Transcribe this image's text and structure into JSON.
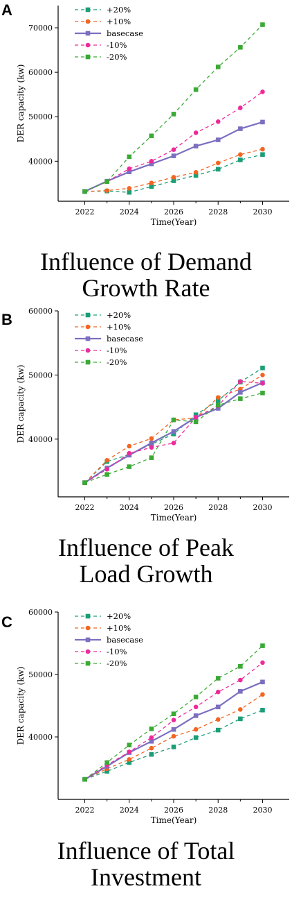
{
  "chart_data": [
    {
      "panel_label": "A",
      "type": "line",
      "title_lines": [
        "Influence of Demand",
        "Growth Rate"
      ],
      "xlabel": "Time(Year)",
      "ylabel": "DER capacity (kw)",
      "x": [
        2022,
        2023,
        2024,
        2025,
        2026,
        2027,
        2028,
        2029,
        2030
      ],
      "xticks": [
        2022,
        2024,
        2026,
        2028,
        2030
      ],
      "xlim": [
        2020.8,
        2031.2
      ],
      "yticks": [
        40000,
        50000,
        60000,
        70000
      ],
      "ylim": [
        31000,
        75000
      ],
      "legend_position": "top-left",
      "series": [
        {
          "name": "+20%",
          "color": "#1b9e77",
          "dash": true,
          "marker": "square",
          "values": [
            33200,
            33300,
            33000,
            34300,
            35600,
            36800,
            38200,
            40300,
            41500
          ]
        },
        {
          "name": "+10%",
          "color": "#f26522",
          "dash": true,
          "marker": "circle",
          "values": [
            33200,
            33400,
            33900,
            35100,
            36400,
            37500,
            39600,
            41500,
            42700
          ]
        },
        {
          "name": "basecase",
          "color": "#7b6fc0",
          "dash": false,
          "marker": "square",
          "values": [
            33200,
            35500,
            37600,
            39400,
            41200,
            43400,
            44800,
            47300,
            48800
          ]
        },
        {
          "name": "-10%",
          "color": "#ee2a9b",
          "dash": true,
          "marker": "circle",
          "values": [
            33200,
            35400,
            38300,
            40000,
            42600,
            46400,
            48900,
            52000,
            55600
          ]
        },
        {
          "name": "-20%",
          "color": "#3aaa35",
          "dash": true,
          "marker": "square",
          "values": [
            33200,
            35400,
            41000,
            45700,
            50600,
            56100,
            61200,
            65600,
            70700
          ]
        }
      ]
    },
    {
      "panel_label": "B",
      "type": "line",
      "title_lines": [
        "Influence of Peak",
        "Load Growth"
      ],
      "xlabel": "Time(Year)",
      "ylabel": "DER capacity (kw)",
      "x": [
        2022,
        2023,
        2024,
        2025,
        2026,
        2027,
        2028,
        2029,
        2030
      ],
      "xticks": [
        2022,
        2024,
        2026,
        2028,
        2030
      ],
      "xlim": [
        2020.8,
        2031.2
      ],
      "yticks": [
        40000,
        50000,
        60000
      ],
      "ylim": [
        31000,
        60000
      ],
      "legend_position": "top-left",
      "series": [
        {
          "name": "+20%",
          "color": "#1b9e77",
          "dash": true,
          "marker": "square",
          "values": [
            33200,
            36500,
            37600,
            39200,
            40800,
            43800,
            46000,
            48900,
            51100
          ]
        },
        {
          "name": "+10%",
          "color": "#f26522",
          "dash": true,
          "marker": "circle",
          "values": [
            33200,
            36700,
            38900,
            40100,
            43000,
            43300,
            46500,
            47800,
            50000
          ]
        },
        {
          "name": "basecase",
          "color": "#7b6fc0",
          "dash": false,
          "marker": "square",
          "values": [
            33200,
            35500,
            37500,
            39400,
            41200,
            43400,
            44800,
            47300,
            48800
          ]
        },
        {
          "name": "-10%",
          "color": "#ee2a9b",
          "dash": true,
          "marker": "circle",
          "values": [
            33200,
            35300,
            37800,
            38700,
            39400,
            43400,
            45200,
            49000,
            48700
          ]
        },
        {
          "name": "-20%",
          "color": "#3aaa35",
          "dash": true,
          "marker": "square",
          "values": [
            33200,
            34500,
            35700,
            37100,
            43000,
            42700,
            45300,
            46300,
            47200
          ]
        }
      ]
    },
    {
      "panel_label": "C",
      "type": "line",
      "title_lines": [
        "Influence of Total",
        "Investment"
      ],
      "xlabel": "Time(Year)",
      "ylabel": "DER capacity (kw)",
      "x": [
        2022,
        2023,
        2024,
        2025,
        2026,
        2027,
        2028,
        2029,
        2030
      ],
      "xticks": [
        2022,
        2024,
        2026,
        2028,
        2030
      ],
      "xlim": [
        2020.8,
        2031.2
      ],
      "yticks": [
        40000,
        50000,
        60000
      ],
      "ylim": [
        30000,
        60000
      ],
      "legend_position": "top-left",
      "series": [
        {
          "name": "+20%",
          "color": "#1b9e77",
          "dash": true,
          "marker": "square",
          "values": [
            33200,
            34500,
            35900,
            37200,
            38400,
            39900,
            41100,
            42900,
            44300
          ]
        },
        {
          "name": "+10%",
          "color": "#f26522",
          "dash": true,
          "marker": "circle",
          "values": [
            33200,
            34900,
            36400,
            38200,
            40100,
            41200,
            42800,
            44400,
            46800
          ]
        },
        {
          "name": "basecase",
          "color": "#7b6fc0",
          "dash": false,
          "marker": "square",
          "values": [
            33200,
            35300,
            37500,
            39300,
            41200,
            43400,
            44800,
            47300,
            48800
          ]
        },
        {
          "name": "-10%",
          "color": "#ee2a9b",
          "dash": true,
          "marker": "circle",
          "values": [
            33200,
            35500,
            37600,
            39900,
            42700,
            44800,
            47200,
            49100,
            51900
          ]
        },
        {
          "name": "-20%",
          "color": "#3aaa35",
          "dash": true,
          "marker": "square",
          "values": [
            33200,
            35900,
            38700,
            41300,
            43700,
            46400,
            49400,
            51300,
            54600
          ]
        }
      ]
    }
  ]
}
